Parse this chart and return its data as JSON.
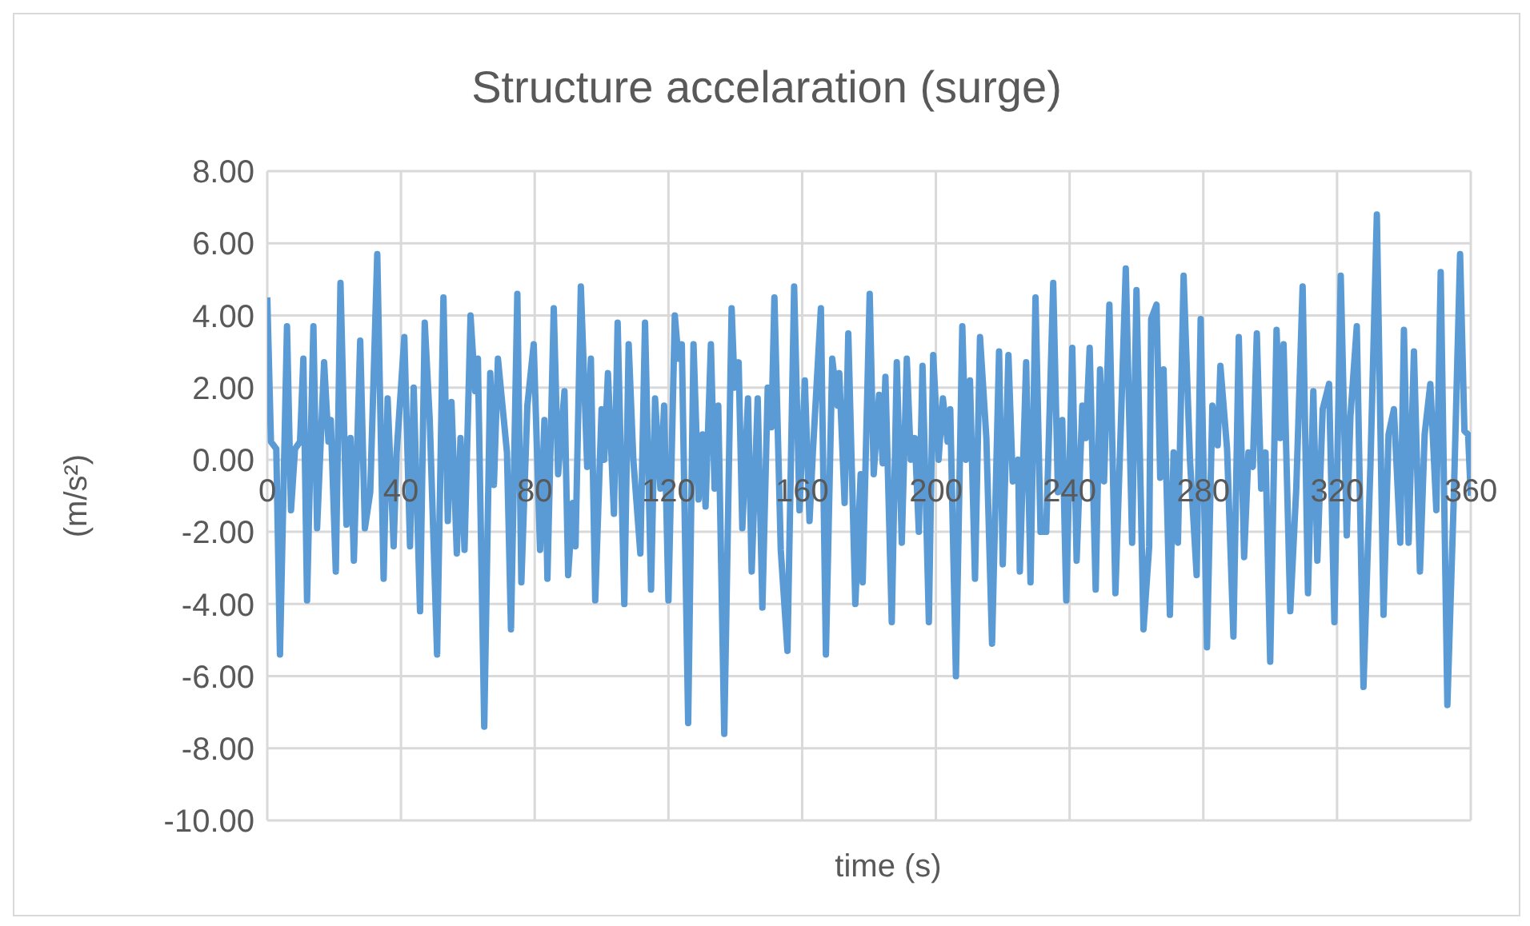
{
  "chart_data": {
    "type": "line",
    "title": "Structure accelaration (surge)",
    "xlabel": "time (s)",
    "ylabel": "(m/s²)",
    "xlim": [
      0,
      360
    ],
    "xticks": [
      0,
      40,
      80,
      120,
      160,
      200,
      240,
      280,
      320,
      360
    ],
    "ylim": [
      -10,
      8
    ],
    "yticks": [
      {
        "value": -10,
        "label": "-10.00"
      },
      {
        "value": -8,
        "label": "-8.00"
      },
      {
        "value": -6,
        "label": "-6.00"
      },
      {
        "value": -4,
        "label": "-4.00"
      },
      {
        "value": -2,
        "label": "-2.00"
      },
      {
        "value": 0,
        "label": "0.00"
      },
      {
        "value": 2,
        "label": "2.00"
      },
      {
        "value": 4,
        "label": "4.00"
      },
      {
        "value": 6,
        "label": "6.00"
      },
      {
        "value": 8,
        "label": "8.00"
      }
    ],
    "grid": true,
    "marker": "none",
    "line_style": "solid",
    "series": [
      {
        "color": "#5b9bd5",
        "x": [
          0,
          1.1,
          2.7,
          3.8,
          5.9,
          7.1,
          8.3,
          9.8,
          10.8,
          11.9,
          13.8,
          14.9,
          17,
          18.3,
          19,
          20.5,
          21.9,
          23.7,
          24.9,
          25.9,
          27.8,
          29.2,
          30.8,
          32.9,
          34.8,
          36,
          37.8,
          38.7,
          41,
          42.7,
          43.8,
          45.7,
          47.1,
          48.6,
          50.8,
          52.7,
          54,
          55.1,
          56.7,
          57.8,
          59,
          60.8,
          62.2,
          63,
          64.9,
          66.7,
          67.8,
          69,
          71.7,
          72.9,
          74.8,
          76,
          77.8,
          79.7,
          81.6,
          82.9,
          83.8,
          85.7,
          87,
          88.9,
          90,
          91.4,
          92.2,
          93.8,
          95.7,
          96.8,
          98.1,
          100,
          100.8,
          101.9,
          103.7,
          104.8,
          106.8,
          108.1,
          109.5,
          111.6,
          113,
          114.8,
          116,
          117.6,
          118.7,
          120,
          121.9,
          123,
          124,
          125.9,
          127.5,
          129,
          130.2,
          131.1,
          132.7,
          133.8,
          134.9,
          136.7,
          138.9,
          139.8,
          141,
          142.1,
          143.8,
          144.9,
          146.7,
          148.1,
          149.7,
          150.8,
          151.7,
          153.6,
          155.6,
          157.6,
          159.2,
          160.8,
          162.2,
          163.2,
          165.6,
          167.1,
          169,
          170.6,
          171.1,
          172.7,
          173.8,
          175.9,
          177.5,
          178.1,
          180.2,
          181.4,
          183,
          184.1,
          184.9,
          186.8,
          188.3,
          189.8,
          191.3,
          192.5,
          193.7,
          194.9,
          196,
          197.9,
          199.2,
          200.8,
          202.1,
          203.5,
          204.3,
          206,
          207.9,
          209,
          210.2,
          211.7,
          213.2,
          215.1,
          216.8,
          218.9,
          220,
          221.7,
          223,
          224.6,
          225.1,
          227,
          228.3,
          229.8,
          231.3,
          233,
          235.1,
          236.5,
          237.8,
          239,
          240.8,
          242.1,
          243.8,
          244.8,
          246,
          247.8,
          249.1,
          250.3,
          251.9,
          253.7,
          255.1,
          256.8,
          258.7,
          260,
          262.1,
          263.8,
          264.4,
          266,
          267.1,
          268.1,
          270,
          271.1,
          272.4,
          274.1,
          276,
          278,
          279.2,
          281.1,
          282.7,
          284.3,
          285.1,
          287.1,
          289,
          290.6,
          292.2,
          293.5,
          294.8,
          296,
          297.3,
          298.6,
          300,
          301.9,
          303,
          304,
          306,
          307.8,
          309.7,
          311.3,
          312.9,
          314.1,
          315.7,
          317.6,
          319.2,
          321.1,
          322.9,
          324,
          325.9,
          327.9,
          330,
          331.9,
          333.9,
          335.4,
          337,
          338.9,
          340,
          341.4,
          343,
          344.8,
          346.2,
          347.9,
          349.7,
          351,
          353,
          354.9,
          356.8,
          358.1,
          359.2,
          360
        ],
        "values": [
          4.5,
          0.5,
          0.3,
          -5.4,
          3.7,
          -1.4,
          0.3,
          0.5,
          2.8,
          -3.9,
          3.7,
          -1.9,
          2.7,
          0.5,
          1.1,
          -3.1,
          4.9,
          -1.8,
          0.6,
          -2.8,
          3.3,
          -1.9,
          -0.9,
          5.7,
          -3.3,
          1.7,
          -2.4,
          0.2,
          3.4,
          -2.4,
          2,
          -4.2,
          3.8,
          1.1,
          -5.4,
          4.5,
          -1.7,
          1.6,
          -2.6,
          0.6,
          -2.5,
          4,
          1.9,
          2.8,
          -7.4,
          2.4,
          -0.7,
          2.8,
          0.2,
          -4.7,
          4.6,
          -3.4,
          1.5,
          3.2,
          -2.5,
          1.1,
          -3.3,
          4.2,
          -0.4,
          1.9,
          -3.2,
          -1.2,
          -2.4,
          4.8,
          -0.2,
          2.8,
          -3.9,
          1.4,
          0,
          2.4,
          -1.5,
          3.8,
          -4,
          3.2,
          0,
          -2.6,
          3.8,
          -3.6,
          1.7,
          -0.8,
          1.5,
          -3.9,
          4,
          2.8,
          3.2,
          -7.3,
          3.2,
          -1.1,
          0.7,
          -1.3,
          3.2,
          -0.8,
          1.5,
          -7.6,
          4.2,
          2,
          2.7,
          -1.9,
          1.7,
          -3.1,
          1.7,
          -4.1,
          2,
          0.9,
          4.5,
          -2.5,
          -5.3,
          4.8,
          -1.4,
          2.2,
          -1.7,
          0.2,
          4.2,
          -5.4,
          2.8,
          1.5,
          2.4,
          -1.2,
          3.5,
          -4,
          -0.4,
          -3.4,
          4.6,
          -0.4,
          1.8,
          -0.1,
          2.3,
          -4.5,
          2.7,
          -2.3,
          2.8,
          0,
          0.6,
          -2,
          2.6,
          -4.5,
          2.9,
          0,
          1.7,
          0.5,
          1.4,
          -6,
          3.7,
          0,
          2.2,
          -3.3,
          3.4,
          0.6,
          -5.1,
          3,
          -2.9,
          2.9,
          -0.6,
          0,
          -3.1,
          2.7,
          -3.4,
          4.5,
          -2,
          -2,
          4.9,
          -0.9,
          1.1,
          -3.9,
          3.1,
          -2.8,
          1.5,
          0.6,
          3.1,
          -3.6,
          2.5,
          -0.6,
          4.3,
          -3.7,
          0.3,
          5.3,
          -2.3,
          4.7,
          -4.7,
          -2.4,
          3.9,
          4.3,
          -0.5,
          2.5,
          -4.3,
          0.2,
          -2.3,
          5.1,
          0,
          -3.2,
          3.9,
          -5.2,
          1.5,
          0.4,
          2.6,
          0.3,
          -4.9,
          3.4,
          -2.7,
          0.2,
          -0.2,
          3.5,
          -0.8,
          0.2,
          -5.6,
          3.6,
          0.6,
          3.2,
          -4.2,
          -0.8,
          4.8,
          -3.7,
          1.9,
          -2.8,
          1.4,
          2.1,
          -4.5,
          5.1,
          -2.1,
          1.2,
          3.7,
          -6.3,
          -0.1,
          6.8,
          -4.3,
          0.7,
          1.4,
          -2.3,
          3.6,
          -2.3,
          3,
          -3.1,
          0.7,
          2.1,
          -1.4,
          5.2,
          -6.8,
          -1.1,
          5.7,
          0.8,
          0.7,
          -1
        ]
      }
    ]
  }
}
